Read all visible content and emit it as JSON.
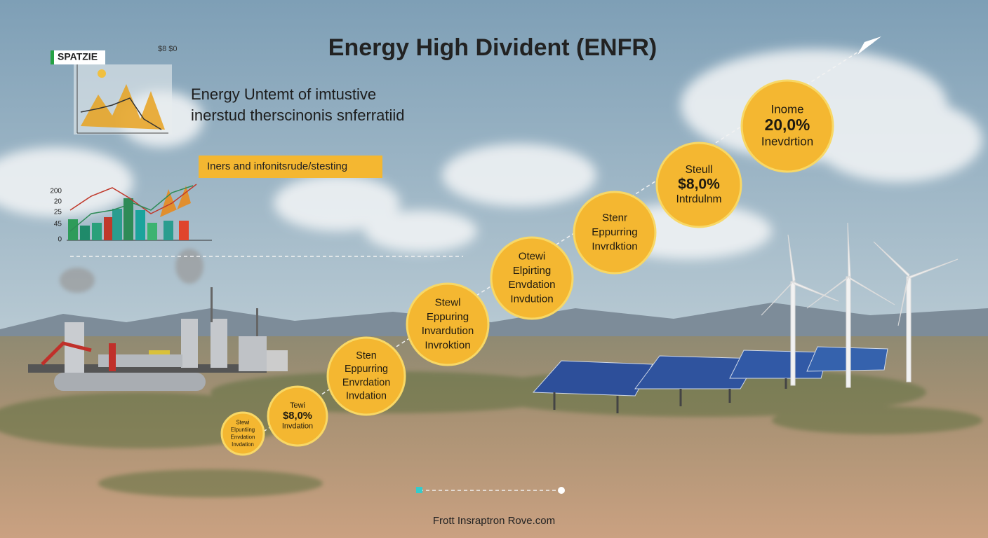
{
  "header": {
    "title": "Energy High Divident (ENFR)",
    "subtitle_lines": [
      "Energy Untemt of imtustive",
      "inerstud therscinonis snferratiid"
    ]
  },
  "badge": "SPATZIE",
  "corner_label": "$8 $0",
  "tag": "Iners and infonitsrude/stesting",
  "mini_chart": {
    "axis_labels": [
      "200",
      "20",
      "25",
      "45",
      "0"
    ]
  },
  "milestones": [
    {
      "lines": [
        "Stewi",
        "Elpuntiing",
        "Envdation",
        "Invdation"
      ]
    },
    {
      "lines": [
        "Tewi",
        "$8,0%",
        "Invdation"
      ]
    },
    {
      "lines": [
        "Sten",
        "Eppurring",
        "Envrdation",
        "Invdation"
      ]
    },
    {
      "lines": [
        "Stewl",
        "Eppuring",
        "Invardution",
        "Invroktion"
      ]
    },
    {
      "lines": [
        "Otewi",
        "Elpirting",
        "Envdation",
        "Invdution"
      ]
    },
    {
      "lines": [
        "Stenr",
        "Eppurring",
        "Invrdktion"
      ]
    },
    {
      "lines": [
        "Steull",
        "$8,0%",
        "Intrdulnm"
      ]
    },
    {
      "lines": [
        "Inome",
        "20,0%",
        "Inevdrtion"
      ]
    }
  ],
  "footer": "Frott Insraptron Rove.com"
}
